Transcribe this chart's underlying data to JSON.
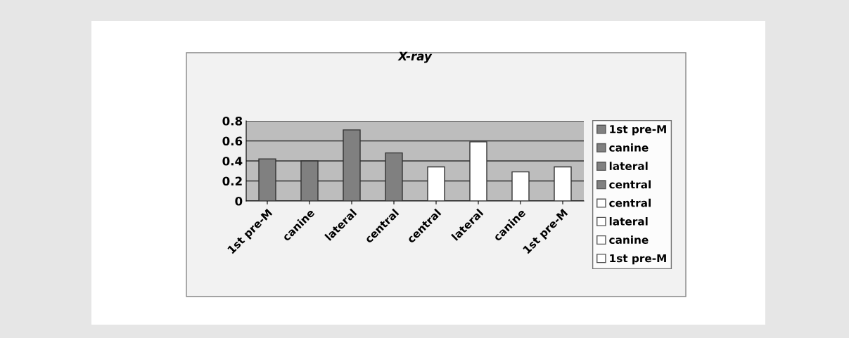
{
  "chart_data": {
    "type": "bar",
    "title": "X-ray",
    "categories": [
      "1st pre-M",
      "canine",
      "lateral",
      "central",
      "central",
      "lateral",
      "canine",
      "1st pre-M"
    ],
    "series": [
      {
        "name": "1st pre-M",
        "color": "#808080",
        "values": [
          0.42,
          null,
          null,
          null,
          null,
          null,
          null,
          null
        ]
      },
      {
        "name": "canine",
        "color": "#808080",
        "values": [
          null,
          0.4,
          null,
          null,
          null,
          null,
          null,
          null
        ]
      },
      {
        "name": "lateral",
        "color": "#808080",
        "values": [
          null,
          null,
          0.71,
          null,
          null,
          null,
          null,
          null
        ]
      },
      {
        "name": "central",
        "color": "#808080",
        "values": [
          null,
          null,
          null,
          0.48,
          null,
          null,
          null,
          null
        ]
      },
      {
        "name": "central",
        "color": "#ffffff",
        "values": [
          null,
          null,
          null,
          null,
          0.34,
          null,
          null,
          null
        ]
      },
      {
        "name": "lateral",
        "color": "#ffffff",
        "values": [
          null,
          null,
          null,
          null,
          null,
          0.59,
          null,
          null
        ]
      },
      {
        "name": "canine",
        "color": "#ffffff",
        "values": [
          null,
          null,
          null,
          null,
          null,
          null,
          0.29,
          null
        ]
      },
      {
        "name": "1st pre-M",
        "color": "#ffffff",
        "values": [
          null,
          null,
          null,
          null,
          null,
          null,
          null,
          0.34
        ]
      }
    ],
    "ylim": [
      0,
      0.8
    ],
    "yticks": [
      0,
      0.2,
      0.4,
      0.6,
      0.8
    ],
    "grid": "y",
    "legend": "right"
  }
}
